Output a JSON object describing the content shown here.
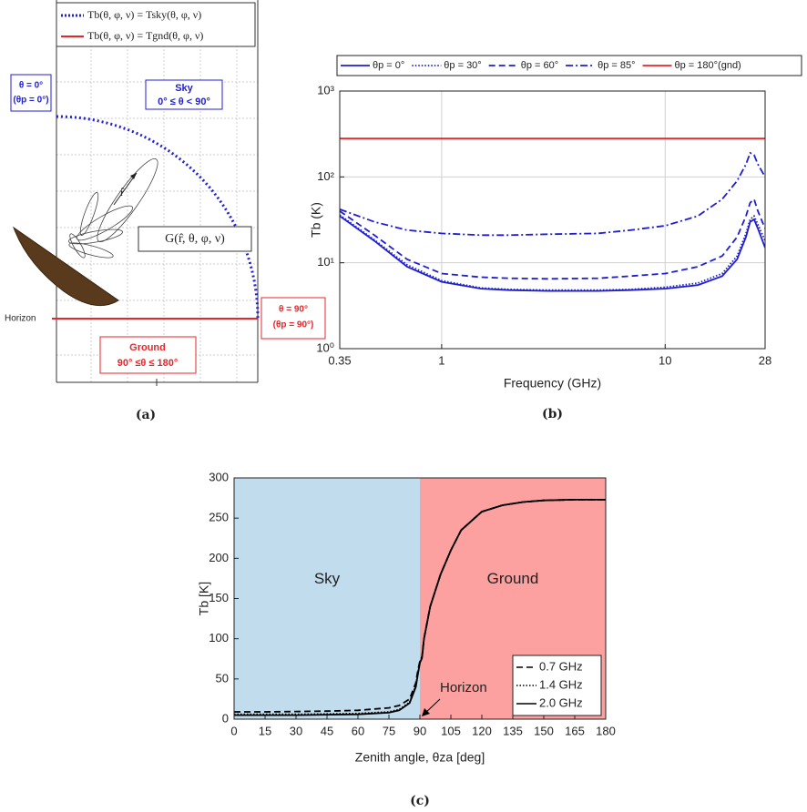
{
  "diagram": {
    "legend": [
      "Tb(θ, φ, ν) = Tsky(θ, φ, ν)",
      "Tb(θ, φ, ν) = Tgnd(θ, φ, ν)"
    ],
    "zenith": [
      "θ = 0°",
      "(θp = 0°)"
    ],
    "sky": [
      "Sky",
      "0° ≤ θ < 90°"
    ],
    "gain": "G(r̂, θ, φ, ν)",
    "direction": "r̂",
    "horizon": "Horizon",
    "horizon_angle": [
      "θ = 90°",
      "(θp = 90°)"
    ],
    "ground": [
      "Ground",
      "90° ≤θ ≤ 180°"
    ],
    "caption": "(a)"
  },
  "chart_data": [
    {
      "type": "line",
      "caption": "(b)",
      "xlabel": "Frequency (GHz)",
      "ylabel": "Tb (K)",
      "xlog": true,
      "ylog": true,
      "grid": true,
      "legend": "top",
      "x": [
        0.35,
        0.5,
        0.7,
        1,
        1.5,
        2,
        3,
        5,
        7,
        10,
        14,
        18,
        21,
        23,
        24,
        25,
        26,
        28
      ],
      "xlim": [
        0.35,
        28
      ],
      "xticks": [
        0.35,
        1,
        10,
        28
      ],
      "ylim": [
        1,
        1000
      ],
      "yticks": [
        {
          "value": 1,
          "label": "10⁰"
        },
        {
          "value": 10,
          "label": "10¹"
        },
        {
          "value": 100,
          "label": "10²"
        },
        {
          "value": 1000,
          "label": "10³"
        }
      ],
      "series": [
        {
          "name": "θp = 0°",
          "color": "#1f1fd0",
          "dash": "solid",
          "values": [
            35,
            18,
            9,
            6,
            5,
            4.8,
            4.7,
            4.7,
            4.8,
            5,
            5.5,
            7,
            11,
            20,
            30,
            32,
            25,
            15
          ]
        },
        {
          "name": "θp = 30°",
          "color": "#1f1fd0",
          "dash": "dotted",
          "values": [
            36,
            18.5,
            9.5,
            6.2,
            5.1,
            4.9,
            4.8,
            4.8,
            4.9,
            5.2,
            5.8,
            7.5,
            12,
            22,
            32,
            35,
            28,
            18
          ]
        },
        {
          "name": "θp = 60°",
          "color": "#1f1fd0",
          "dash": "dashed",
          "values": [
            40,
            21,
            11,
            7.5,
            6.8,
            6.6,
            6.5,
            6.6,
            7,
            7.5,
            9,
            12,
            20,
            35,
            50,
            55,
            40,
            25
          ]
        },
        {
          "name": "θp = 85°",
          "color": "#1f1fd0",
          "dash": "dashdot",
          "values": [
            42,
            30,
            24,
            22,
            21,
            21,
            21.5,
            22,
            24,
            27,
            35,
            55,
            90,
            140,
            190,
            180,
            140,
            100
          ]
        },
        {
          "name": "θp = 180°(gnd)",
          "color": "#e8262a",
          "dash": "solid",
          "values": [
            280,
            280,
            280,
            280,
            280,
            280,
            280,
            280,
            280,
            280,
            280,
            280,
            280,
            280,
            280,
            280,
            280,
            280
          ]
        }
      ]
    },
    {
      "type": "line",
      "caption": "(c)",
      "xlabel": "Zenith angle, θza [deg]",
      "ylabel": "Tb [K]",
      "xlog": false,
      "ylog": false,
      "grid": false,
      "legend": "lower right",
      "regions": [
        {
          "label": "Sky",
          "from": 0,
          "to": 90,
          "color": "#c0dced"
        },
        {
          "label": "Ground",
          "from": 90,
          "to": 180,
          "color": "#fca0a0"
        }
      ],
      "annotation": "Horizon",
      "x": [
        0,
        15,
        30,
        45,
        60,
        75,
        80,
        85,
        88,
        89,
        90,
        91,
        92,
        95,
        100,
        105,
        110,
        120,
        130,
        140,
        150,
        165,
        180
      ],
      "xlim": [
        0,
        180
      ],
      "xticks": [
        0,
        15,
        30,
        45,
        60,
        75,
        90,
        105,
        120,
        135,
        150,
        165,
        180
      ],
      "ylim": [
        0,
        300
      ],
      "yticks": [
        0,
        50,
        100,
        150,
        200,
        250,
        300
      ],
      "series": [
        {
          "name": "0.7 GHz",
          "color": "#000000",
          "dash": "dashed",
          "values": [
            9,
            9,
            9.5,
            10,
            11,
            14,
            17,
            25,
            45,
            60,
            72,
            78,
            100,
            140,
            180,
            210,
            235,
            258,
            266,
            270,
            272,
            273,
            273
          ]
        },
        {
          "name": "1.4 GHz",
          "color": "#000000",
          "dash": "dotted",
          "values": [
            6,
            6,
            6,
            6.5,
            7,
            9,
            12,
            21,
            42,
            57,
            71,
            77,
            100,
            140,
            180,
            210,
            235,
            258,
            266,
            270,
            272,
            273,
            273
          ]
        },
        {
          "name": "2.0 GHz",
          "color": "#000000",
          "dash": "solid",
          "values": [
            5,
            5,
            5,
            5.5,
            6,
            8,
            11,
            20,
            40,
            55,
            70,
            76,
            100,
            140,
            180,
            210,
            235,
            258,
            266,
            270,
            272,
            273,
            273
          ]
        }
      ]
    }
  ]
}
